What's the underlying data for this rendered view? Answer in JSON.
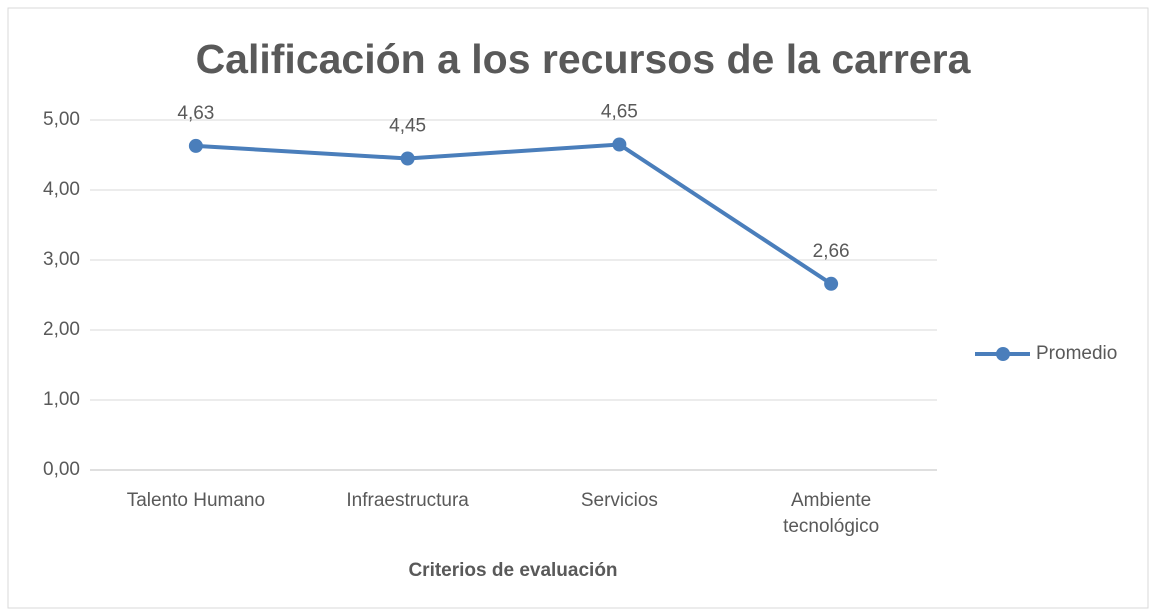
{
  "chart_data": {
    "type": "line",
    "title": "Calificación a los recursos de la carrera",
    "x_label": "Criterios de evaluación",
    "categories": [
      "Talento Humano",
      "Infraestructura",
      "Servicios",
      "Ambiente tecnológico"
    ],
    "series": [
      {
        "name": "Promedio",
        "color": "#4a7ebb",
        "values": [
          4.63,
          4.45,
          4.65,
          2.66
        ],
        "value_labels": [
          "4,63",
          "4,45",
          "4,65",
          "2,66"
        ]
      }
    ],
    "ylim": [
      0,
      5
    ],
    "yticks": [
      {
        "value": 0,
        "label": "0,00"
      },
      {
        "value": 1,
        "label": "1,00"
      },
      {
        "value": 2,
        "label": "2,00"
      },
      {
        "value": 3,
        "label": "3,00"
      },
      {
        "value": 4,
        "label": "4,00"
      },
      {
        "value": 5,
        "label": "5,00"
      }
    ],
    "grid": true,
    "legend": "right"
  }
}
